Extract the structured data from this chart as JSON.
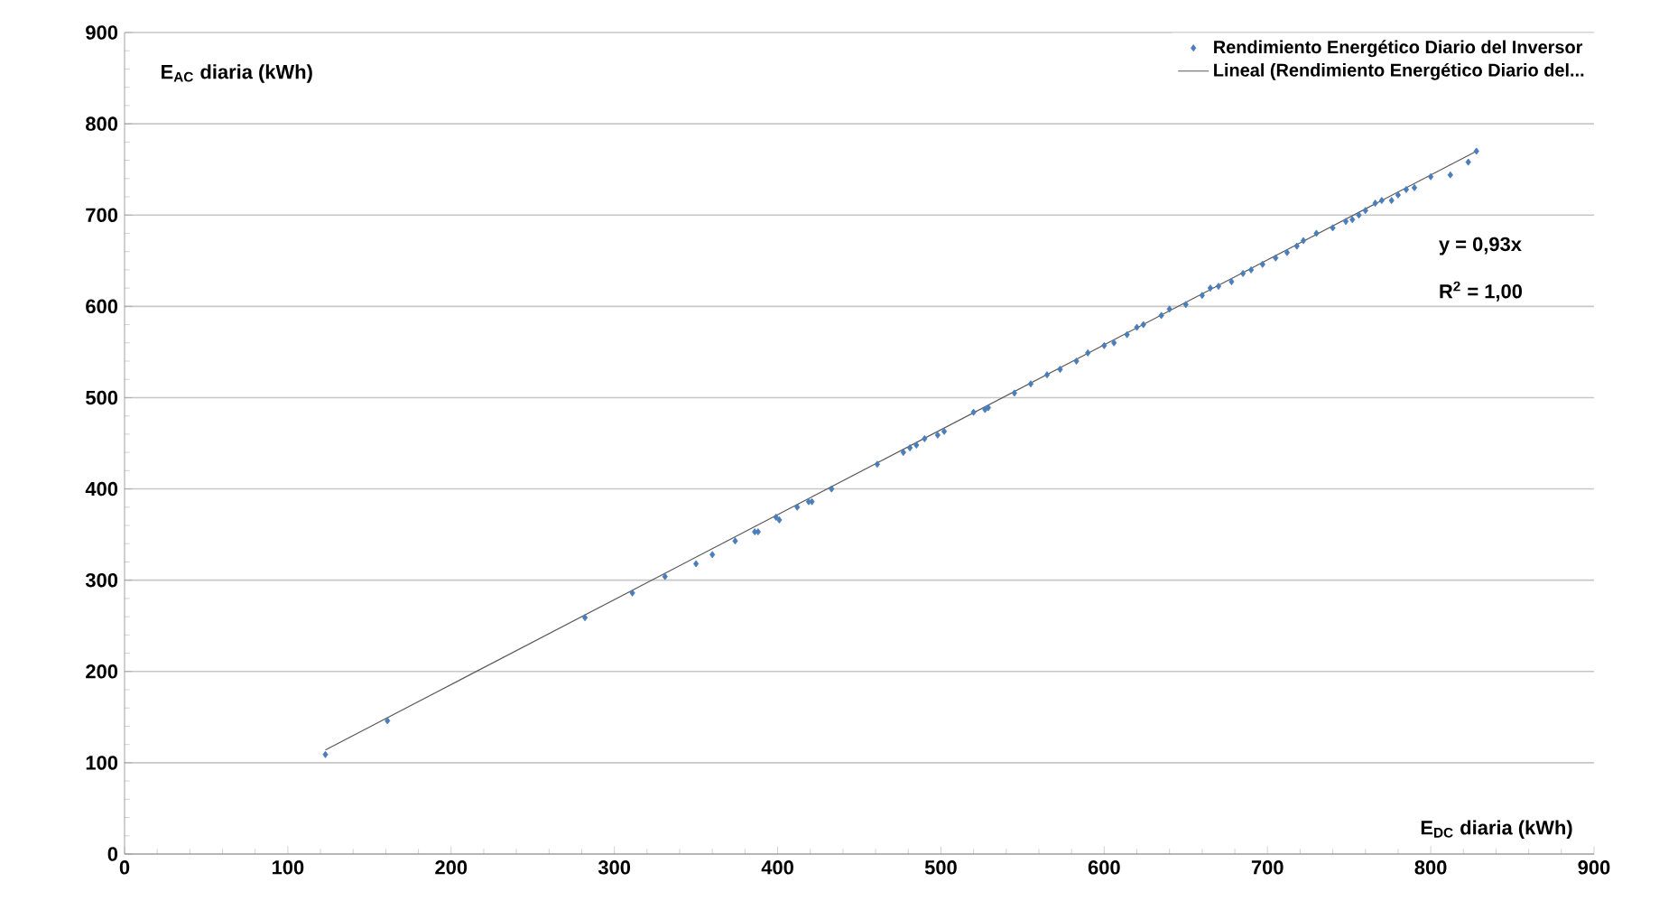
{
  "chart_data": {
    "type": "scatter",
    "xlabel": "E$_{DC}$ diaria  (kWh)",
    "ylabel": "E$_{AC}$ diaria  (kWh)",
    "annotations": [
      "y = 0,93x",
      "R$^{2}$ = 1,00"
    ],
    "x": [
      123,
      161,
      282,
      311,
      331,
      350,
      360,
      374,
      386,
      388,
      399,
      401,
      412,
      419,
      421,
      433,
      461,
      477,
      481,
      485,
      490,
      498,
      502,
      520,
      527,
      529,
      545,
      555,
      565,
      573,
      583,
      590,
      600,
      606,
      614,
      620,
      624,
      635,
      640,
      650,
      660,
      665,
      670,
      678,
      685,
      690,
      697,
      705,
      712,
      718,
      722,
      730,
      740,
      748,
      752,
      756,
      760,
      766,
      770,
      776,
      780,
      785,
      790,
      800,
      812,
      823,
      828
    ],
    "series": [
      {
        "name": "Rendimiento Energético Diario del Inversor",
        "color": "#4a7ebb",
        "marker": "diamond",
        "values": [
          109,
          146,
          259,
          286,
          304,
          318,
          328,
          343,
          353,
          353,
          369,
          366,
          380,
          386,
          386,
          400,
          427,
          440,
          445,
          448,
          455,
          459,
          463,
          484,
          487,
          489,
          505,
          515,
          525,
          531,
          540,
          549,
          557,
          560,
          569,
          577,
          580,
          590,
          597,
          602,
          612,
          620,
          622,
          627,
          636,
          640,
          646,
          653,
          659,
          666,
          672,
          680,
          686,
          693,
          695,
          700,
          705,
          713,
          716,
          716,
          722,
          728,
          730,
          742,
          744,
          758,
          770
        ]
      },
      {
        "name": "Lineal (Rendimiento Energético Diario del...",
        "type": "line",
        "color": "#595959",
        "marker": "none",
        "x": [
          123,
          828
        ],
        "values": [
          114,
          770
        ]
      }
    ],
    "xlim": [
      0,
      900
    ],
    "ylim": [
      0,
      900
    ],
    "xticks": [
      0,
      100,
      200,
      300,
      400,
      500,
      600,
      700,
      800,
      900
    ],
    "yticks": [
      0,
      100,
      200,
      300,
      400,
      500,
      600,
      700,
      800,
      900
    ],
    "grid": "y",
    "legend": "top right"
  }
}
